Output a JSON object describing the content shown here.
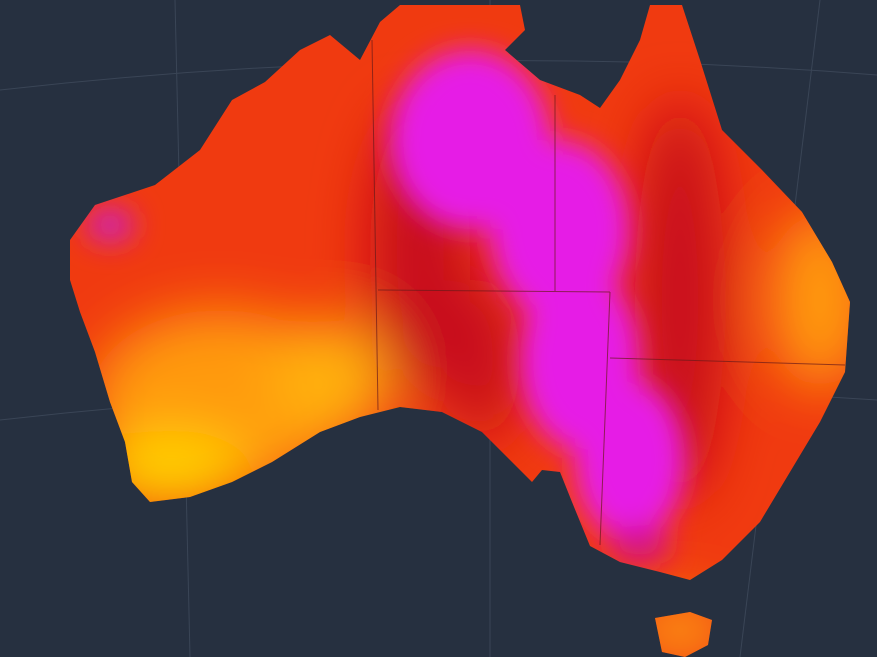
{
  "map": {
    "colors": {
      "ocean": "#263040",
      "graticule": "#3a4556",
      "hot_base": "#f03a10",
      "hotter": "#c8101a",
      "extreme": "#e61ee6",
      "warm": "#ff8c10",
      "mild": "#ffd000",
      "border": "#5a1010"
    }
  }
}
